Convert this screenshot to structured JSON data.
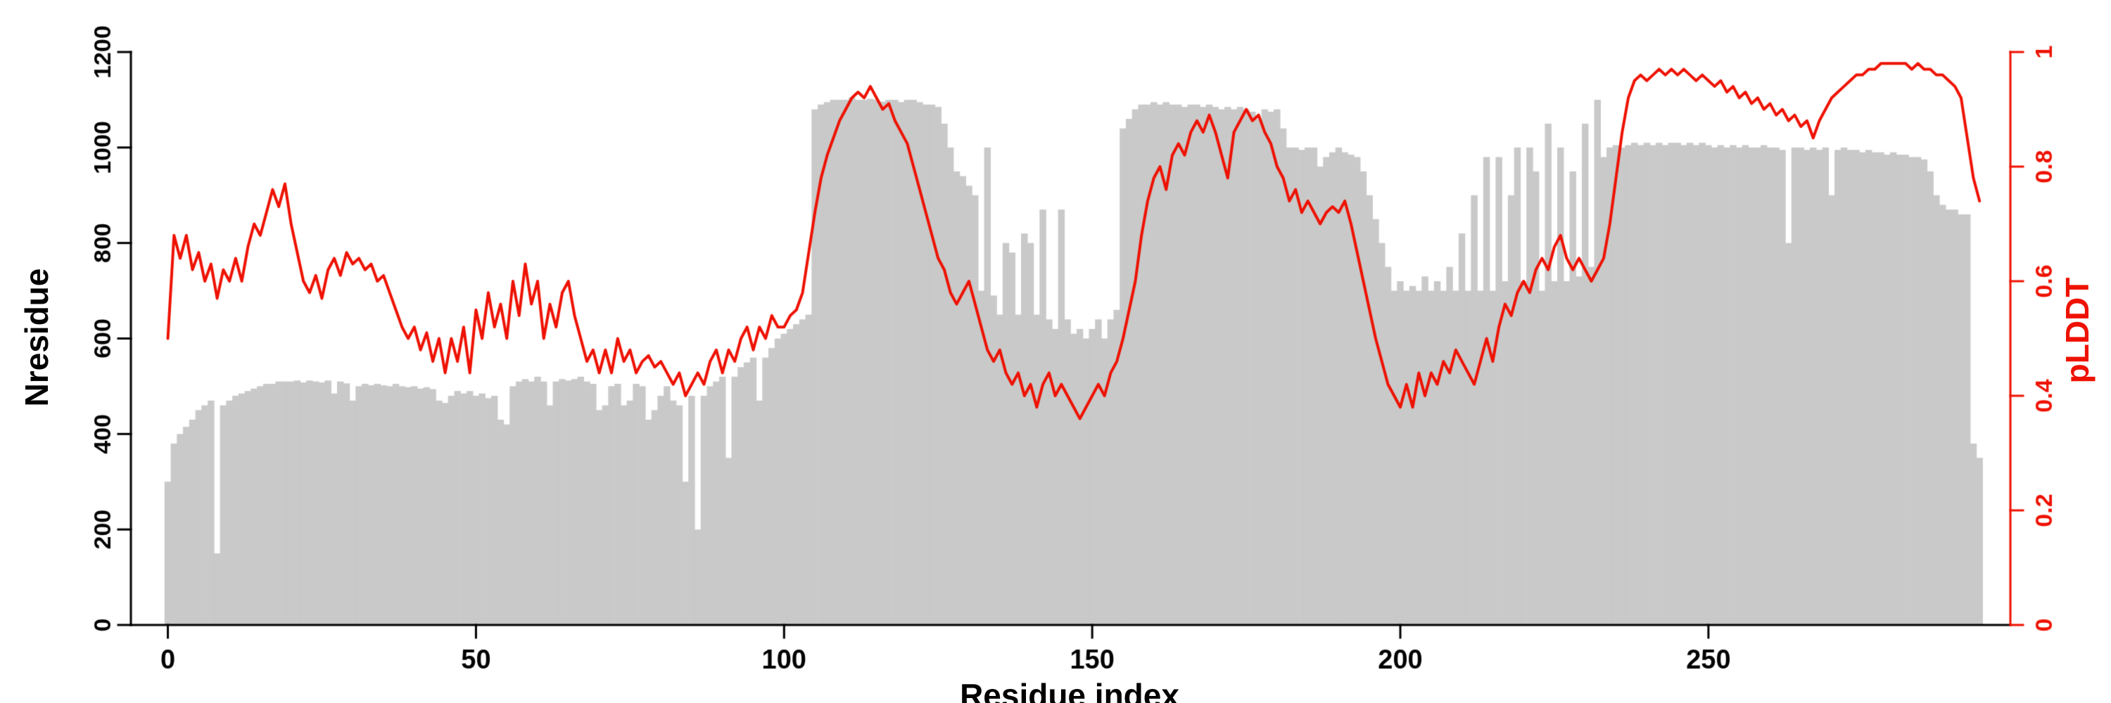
{
  "chart_data": {
    "type": "bar",
    "subtype": "bar+line dual axis",
    "title": "",
    "xlabel": "Residue index",
    "ylabel_left": "Nresidue",
    "ylabel_right": "pLDDT",
    "x_ticks": [
      0,
      50,
      100,
      150,
      200,
      250
    ],
    "y_left_ticks": [
      0,
      200,
      400,
      600,
      800,
      1000,
      1200
    ],
    "y_right_ticks": [
      0,
      0.2,
      0.4,
      0.6,
      0.8,
      1
    ],
    "x_range": [
      -6,
      299
    ],
    "y_left_range": [
      0,
      1200
    ],
    "y_right_range": [
      0,
      1
    ],
    "bar_color": "#c9c9c9",
    "line_color": "#ee1100",
    "axis_color": "#000000",
    "grid": false,
    "legend": "none",
    "x_start": 0,
    "x_step": 1,
    "bars": {
      "name": "Nresidue",
      "values": [
        300,
        380,
        400,
        415,
        430,
        450,
        460,
        470,
        150,
        460,
        470,
        480,
        485,
        490,
        495,
        500,
        505,
        505,
        510,
        510,
        510,
        512,
        508,
        512,
        510,
        508,
        512,
        485,
        510,
        506,
        470,
        500,
        505,
        502,
        505,
        502,
        500,
        505,
        500,
        498,
        500,
        495,
        498,
        494,
        470,
        465,
        480,
        490,
        485,
        490,
        480,
        485,
        475,
        480,
        430,
        420,
        500,
        510,
        515,
        510,
        520,
        510,
        460,
        510,
        515,
        512,
        515,
        520,
        510,
        505,
        450,
        460,
        500,
        505,
        460,
        470,
        505,
        500,
        430,
        450,
        480,
        500,
        470,
        460,
        300,
        480,
        200,
        480,
        500,
        510,
        520,
        350,
        520,
        540,
        550,
        560,
        470,
        560,
        580,
        600,
        610,
        620,
        630,
        640,
        650,
        1080,
        1090,
        1095,
        1100,
        1100,
        1100,
        1105,
        1100,
        1100,
        1102,
        1100,
        1096,
        1100,
        1100,
        1095,
        1100,
        1100,
        1095,
        1090,
        1090,
        1085,
        1050,
        1000,
        950,
        940,
        920,
        900,
        700,
        1000,
        690,
        650,
        800,
        780,
        650,
        820,
        800,
        650,
        870,
        640,
        620,
        870,
        640,
        610,
        620,
        600,
        620,
        640,
        600,
        640,
        660,
        1040,
        1060,
        1080,
        1090,
        1090,
        1095,
        1090,
        1095,
        1090,
        1090,
        1085,
        1090,
        1090,
        1085,
        1090,
        1085,
        1080,
        1085,
        1080,
        1085,
        1080,
        1075,
        1060,
        1080,
        1075,
        1080,
        1040,
        1000,
        1000,
        995,
        1000,
        1000,
        960,
        980,
        990,
        1000,
        990,
        985,
        980,
        950,
        900,
        850,
        800,
        750,
        700,
        720,
        700,
        710,
        700,
        730,
        700,
        720,
        700,
        750,
        700,
        820,
        700,
        900,
        700,
        980,
        700,
        980,
        720,
        900,
        1000,
        720,
        1000,
        950,
        700,
        1050,
        720,
        1000,
        720,
        950,
        730,
        1050,
        750,
        1100,
        980,
        1000,
        1005,
        1000,
        1005,
        1010,
        1005,
        1010,
        1005,
        1010,
        1005,
        1010,
        1010,
        1005,
        1010,
        1005,
        1010,
        1005,
        1000,
        1005,
        1000,
        1005,
        1000,
        1005,
        1000,
        1000,
        1005,
        1000,
        1000,
        995,
        800,
        1000,
        1000,
        995,
        1000,
        995,
        1000,
        900,
        995,
        1000,
        995,
        995,
        990,
        995,
        990,
        990,
        985,
        990,
        985,
        985,
        980,
        980,
        975,
        950,
        900,
        880,
        870,
        870,
        860,
        860,
        380,
        350
      ]
    },
    "line": {
      "name": "pLDDT",
      "values": [
        0.5,
        0.68,
        0.64,
        0.68,
        0.62,
        0.65,
        0.6,
        0.63,
        0.57,
        0.62,
        0.6,
        0.64,
        0.6,
        0.66,
        0.7,
        0.68,
        0.72,
        0.76,
        0.73,
        0.77,
        0.7,
        0.65,
        0.6,
        0.58,
        0.61,
        0.57,
        0.62,
        0.64,
        0.61,
        0.65,
        0.63,
        0.64,
        0.62,
        0.63,
        0.6,
        0.61,
        0.58,
        0.55,
        0.52,
        0.5,
        0.52,
        0.48,
        0.51,
        0.46,
        0.5,
        0.44,
        0.5,
        0.46,
        0.52,
        0.44,
        0.55,
        0.5,
        0.58,
        0.52,
        0.56,
        0.5,
        0.6,
        0.54,
        0.63,
        0.56,
        0.6,
        0.5,
        0.56,
        0.52,
        0.58,
        0.6,
        0.54,
        0.5,
        0.46,
        0.48,
        0.44,
        0.48,
        0.44,
        0.5,
        0.46,
        0.48,
        0.44,
        0.46,
        0.47,
        0.45,
        0.46,
        0.44,
        0.42,
        0.44,
        0.4,
        0.42,
        0.44,
        0.42,
        0.46,
        0.48,
        0.44,
        0.48,
        0.46,
        0.5,
        0.52,
        0.48,
        0.52,
        0.5,
        0.54,
        0.52,
        0.52,
        0.54,
        0.55,
        0.58,
        0.65,
        0.72,
        0.78,
        0.82,
        0.85,
        0.88,
        0.9,
        0.92,
        0.93,
        0.92,
        0.94,
        0.92,
        0.9,
        0.91,
        0.88,
        0.86,
        0.84,
        0.8,
        0.76,
        0.72,
        0.68,
        0.64,
        0.62,
        0.58,
        0.56,
        0.58,
        0.6,
        0.56,
        0.52,
        0.48,
        0.46,
        0.48,
        0.44,
        0.42,
        0.44,
        0.4,
        0.42,
        0.38,
        0.42,
        0.44,
        0.4,
        0.42,
        0.4,
        0.38,
        0.36,
        0.38,
        0.4,
        0.42,
        0.4,
        0.44,
        0.46,
        0.5,
        0.55,
        0.6,
        0.68,
        0.74,
        0.78,
        0.8,
        0.76,
        0.82,
        0.84,
        0.82,
        0.86,
        0.88,
        0.86,
        0.89,
        0.86,
        0.82,
        0.78,
        0.86,
        0.88,
        0.9,
        0.88,
        0.89,
        0.86,
        0.84,
        0.8,
        0.78,
        0.74,
        0.76,
        0.72,
        0.74,
        0.72,
        0.7,
        0.72,
        0.73,
        0.72,
        0.74,
        0.7,
        0.65,
        0.6,
        0.55,
        0.5,
        0.46,
        0.42,
        0.4,
        0.38,
        0.42,
        0.38,
        0.44,
        0.4,
        0.44,
        0.42,
        0.46,
        0.44,
        0.48,
        0.46,
        0.44,
        0.42,
        0.46,
        0.5,
        0.46,
        0.52,
        0.56,
        0.54,
        0.58,
        0.6,
        0.58,
        0.62,
        0.64,
        0.62,
        0.66,
        0.68,
        0.64,
        0.62,
        0.64,
        0.62,
        0.6,
        0.62,
        0.64,
        0.7,
        0.78,
        0.86,
        0.92,
        0.95,
        0.96,
        0.95,
        0.96,
        0.97,
        0.96,
        0.97,
        0.96,
        0.97,
        0.96,
        0.95,
        0.96,
        0.95,
        0.94,
        0.95,
        0.93,
        0.94,
        0.92,
        0.93,
        0.91,
        0.92,
        0.9,
        0.91,
        0.89,
        0.9,
        0.88,
        0.89,
        0.87,
        0.88,
        0.85,
        0.88,
        0.9,
        0.92,
        0.93,
        0.94,
        0.95,
        0.96,
        0.96,
        0.97,
        0.97,
        0.98,
        0.98,
        0.98,
        0.98,
        0.98,
        0.97,
        0.98,
        0.97,
        0.97,
        0.96,
        0.96,
        0.95,
        0.94,
        0.92,
        0.85,
        0.78,
        0.74
      ]
    }
  }
}
